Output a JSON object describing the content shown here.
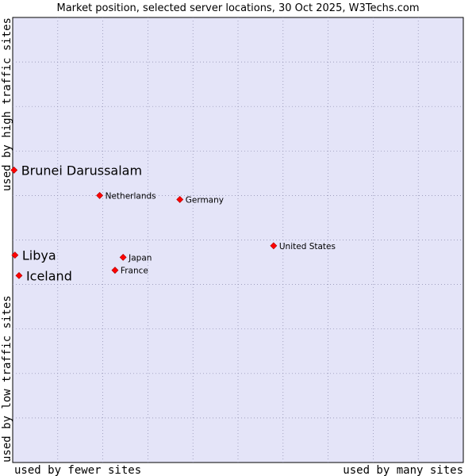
{
  "chart_data": {
    "type": "scatter",
    "title": "Market position, selected server locations, 30 Oct 2025, W3Techs.com",
    "xlabel_left": "used by fewer sites",
    "xlabel_right": "used by many sites",
    "ylabel_bottom": "used by low traffic sites",
    "ylabel_top": "used by high traffic sites",
    "xlim": [
      0,
      10
    ],
    "ylim": [
      0,
      10
    ],
    "grid": true,
    "point_color": "#ff0000",
    "plot_background": "#e4e4f8",
    "points": [
      {
        "label": "Brunei Darussalam",
        "x": 0.03,
        "y": 6.57,
        "emphasis": true
      },
      {
        "label": "Netherlands",
        "x": 1.93,
        "y": 6.0,
        "emphasis": false
      },
      {
        "label": "Germany",
        "x": 3.71,
        "y": 5.91,
        "emphasis": false
      },
      {
        "label": "United States",
        "x": 5.79,
        "y": 4.87,
        "emphasis": false
      },
      {
        "label": "Libya",
        "x": 0.05,
        "y": 4.66,
        "emphasis": true
      },
      {
        "label": "Japan",
        "x": 2.45,
        "y": 4.61,
        "emphasis": false
      },
      {
        "label": "France",
        "x": 2.27,
        "y": 4.32,
        "emphasis": false
      },
      {
        "label": "Iceland",
        "x": 0.14,
        "y": 4.2,
        "emphasis": true
      }
    ]
  }
}
